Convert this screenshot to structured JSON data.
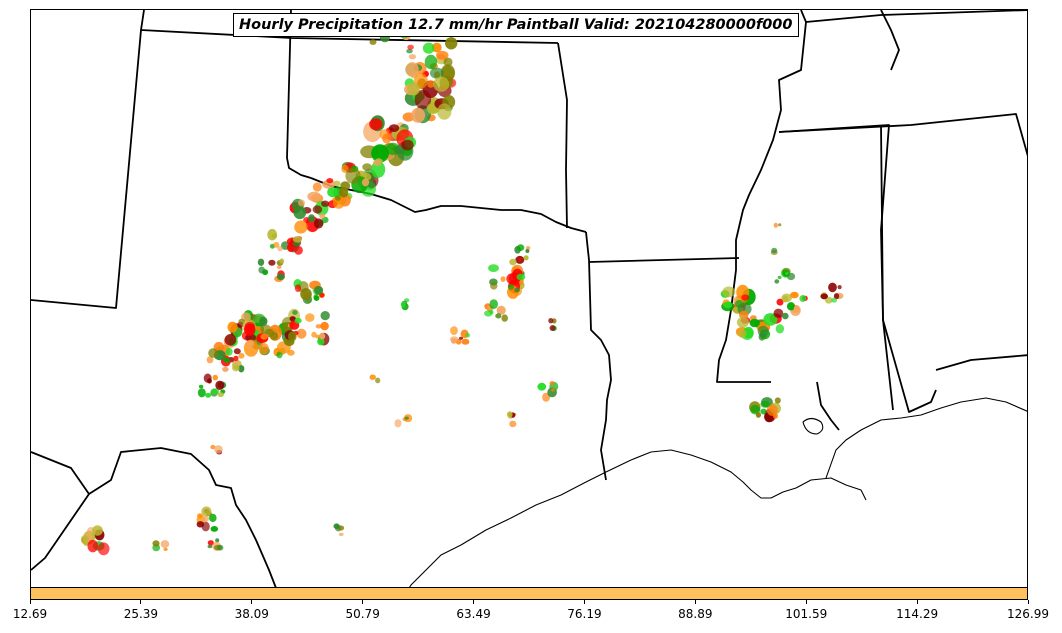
{
  "title": "Hourly Precipitation 12.7 mm/hr Paintball Valid: 202104280000f000",
  "colorbar": {
    "color": "#ffc05e",
    "min": 12.69,
    "max": 126.99,
    "ticks": [
      "12.69",
      "25.39",
      "38.09",
      "50.79",
      "63.49",
      "76.19",
      "88.89",
      "101.59",
      "114.29",
      "126.99"
    ]
  },
  "member_colors": [
    "#ff0000",
    "#ff8c00",
    "#ff7f0e",
    "#8b0000",
    "#00aa00",
    "#22dd22",
    "#2e8b2e",
    "#808000",
    "#b8b830",
    "#f4a460"
  ]
}
